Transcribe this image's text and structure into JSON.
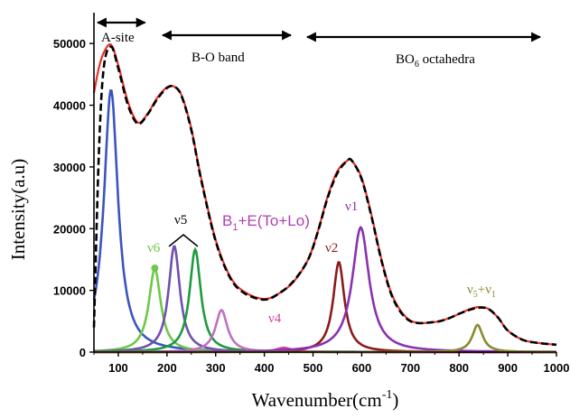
{
  "chart_data": {
    "type": "line",
    "xlabel": "Wavenumber(cm",
    "xlabel_sup": "-1",
    "xlabel_close": ")",
    "ylabel": "Intensity(a.u)",
    "xlim": [
      50,
      1000
    ],
    "ylim": [
      0,
      55000
    ],
    "x_ticks": [
      100,
      200,
      300,
      400,
      500,
      600,
      700,
      800,
      900,
      1000
    ],
    "x_tick_labels": [
      "100",
      "200",
      "300",
      "400",
      "500",
      "600",
      "700",
      "800",
      "900",
      "1000"
    ],
    "y_ticks": [
      0,
      10000,
      20000,
      30000,
      40000,
      50000
    ],
    "y_tick_labels": [
      "0",
      "10000",
      "20000",
      "30000",
      "40000",
      "50000"
    ],
    "grid": false,
    "legend": "none",
    "regions": [
      {
        "label": "A-site",
        "from": 50,
        "to": 155
      },
      {
        "label": "B-O band",
        "from": 180,
        "to": 460
      },
      {
        "label_main": "BO",
        "label_sub": "6",
        "label_rest": " octahedra",
        "from": 480,
        "to": 1000
      }
    ],
    "peaks": [
      {
        "center": 85,
        "height": 42500,
        "width": 35,
        "color": "#3a55c0",
        "label": ""
      },
      {
        "center": 175,
        "height": 13500,
        "width": 30,
        "color": "#6ec84a",
        "label": "ν6"
      },
      {
        "center": 215,
        "height": 17200,
        "width": 28,
        "color": "#7050b0",
        "label": ""
      },
      {
        "center": 258,
        "height": 16600,
        "width": 28,
        "color": "#1e9a40",
        "label": ""
      },
      {
        "center": 312,
        "height": 6800,
        "width": 30,
        "color": "#c070c0",
        "label": ""
      },
      {
        "center": 440,
        "height": 700,
        "width": 40,
        "color": "#d040a0",
        "label": "ν4"
      },
      {
        "center": 553,
        "height": 14600,
        "width": 28,
        "color": "#8b1a1a",
        "label": "ν2"
      },
      {
        "center": 598,
        "height": 20200,
        "width": 42,
        "color": "#8a32b0",
        "label": "ν1"
      },
      {
        "center": 838,
        "height": 4400,
        "width": 26,
        "color": "#8a8a30",
        "label": ""
      }
    ],
    "series": [
      {
        "name": "experimental",
        "style": "dashed",
        "color": "#000000",
        "x": [
          50,
          60,
          70,
          85,
          100,
          120,
          140,
          160,
          180,
          200,
          215,
          230,
          250,
          270,
          300,
          330,
          360,
          400,
          430,
          460,
          490,
          510,
          530,
          550,
          570,
          580,
          600,
          620,
          640,
          660,
          680,
          700,
          720,
          740,
          760,
          780,
          800,
          820,
          840,
          860,
          880,
          900,
          930,
          960,
          1000
        ],
        "y": [
          4000,
          32000,
          46000,
          49500,
          46000,
          40000,
          37000,
          38500,
          41000,
          42800,
          43000,
          41500,
          36000,
          28000,
          18000,
          12000,
          9500,
          8500,
          9500,
          11500,
          15000,
          19500,
          25000,
          29000,
          31000,
          31000,
          28000,
          22000,
          15000,
          9500,
          6500,
          5000,
          4700,
          4800,
          5000,
          5500,
          6200,
          6800,
          7200,
          7000,
          5600,
          3500,
          2000,
          1500,
          1200
        ]
      },
      {
        "name": "fit",
        "style": "solid",
        "color": "#e8302a",
        "x": [
          50,
          60,
          70,
          85,
          100,
          120,
          140,
          160,
          180,
          200,
          215,
          230,
          250,
          270,
          300,
          330,
          360,
          400,
          430,
          460,
          490,
          510,
          530,
          550,
          570,
          580,
          600,
          620,
          640,
          660,
          680,
          700,
          720,
          740,
          760,
          780,
          800,
          820,
          840,
          860,
          880,
          900,
          930,
          960,
          1000
        ],
        "y": [
          42000,
          46000,
          48500,
          49800,
          46500,
          40500,
          37200,
          38600,
          41200,
          42900,
          43000,
          41600,
          36200,
          28200,
          18200,
          12200,
          9700,
          8600,
          9500,
          11400,
          15000,
          19600,
          25200,
          29300,
          31000,
          31000,
          28200,
          22200,
          15200,
          9700,
          6700,
          5100,
          4700,
          4800,
          5000,
          5500,
          6200,
          6900,
          7300,
          7000,
          5600,
          3500,
          2000,
          1500,
          1200
        ]
      }
    ],
    "annotations": {
      "nu5": "ν5",
      "b1_main": "B",
      "b1_sub": "1",
      "b1_rest": "+E(To+Lo)",
      "nu5nu1_a": "ν",
      "nu5nu1_a_sub": "5",
      "nu5nu1_b": "+ν",
      "nu5nu1_b_sub": "1"
    }
  }
}
